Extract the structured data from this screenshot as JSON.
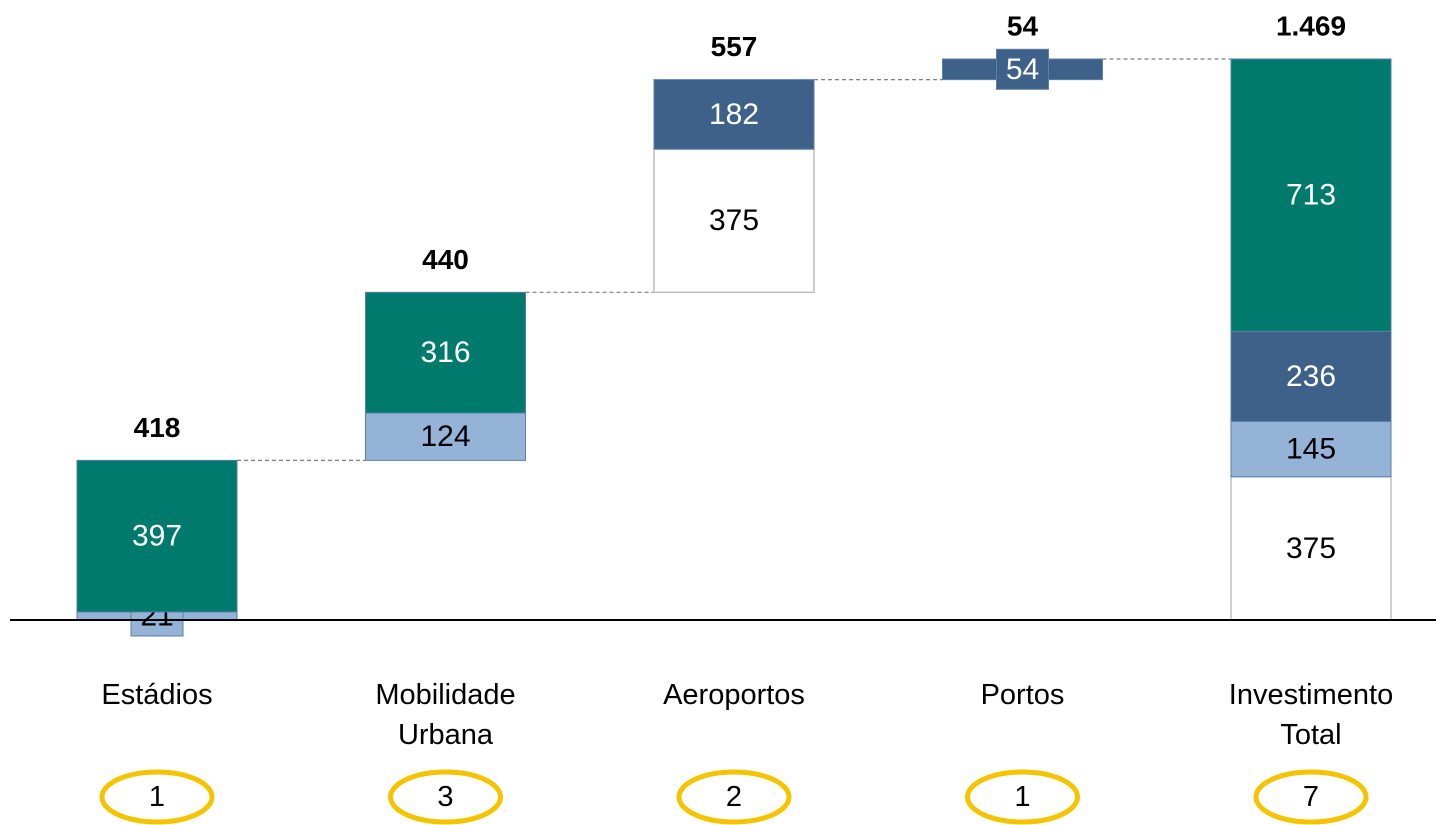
{
  "chart_data": {
    "type": "waterfall",
    "categories": [
      "Estádios",
      "Mobilidade Urbana",
      "Aeroportos",
      "Portos",
      "Investimento Total"
    ],
    "is_total": [
      false,
      false,
      false,
      false,
      true
    ],
    "totals": [
      418,
      440,
      557,
      54,
      1469
    ],
    "total_labels": [
      "418",
      "440",
      "557",
      "54",
      "1.469"
    ],
    "counts": [
      1,
      3,
      2,
      1,
      7
    ],
    "count_color": "#f5c400",
    "series": [
      {
        "color": "#ffffff",
        "label_color": "#000000",
        "values": [
          null,
          null,
          375,
          null,
          375
        ]
      },
      {
        "color": "#95b3d7",
        "label_color": "#000000",
        "values": [
          21,
          124,
          null,
          null,
          145
        ]
      },
      {
        "color": "#3d6189",
        "label_color": "#ffffff",
        "values": [
          null,
          null,
          182,
          54,
          236
        ]
      },
      {
        "color": "#007a6c",
        "label_color": "#ffffff",
        "values": [
          397,
          316,
          null,
          null,
          713
        ]
      }
    ]
  }
}
